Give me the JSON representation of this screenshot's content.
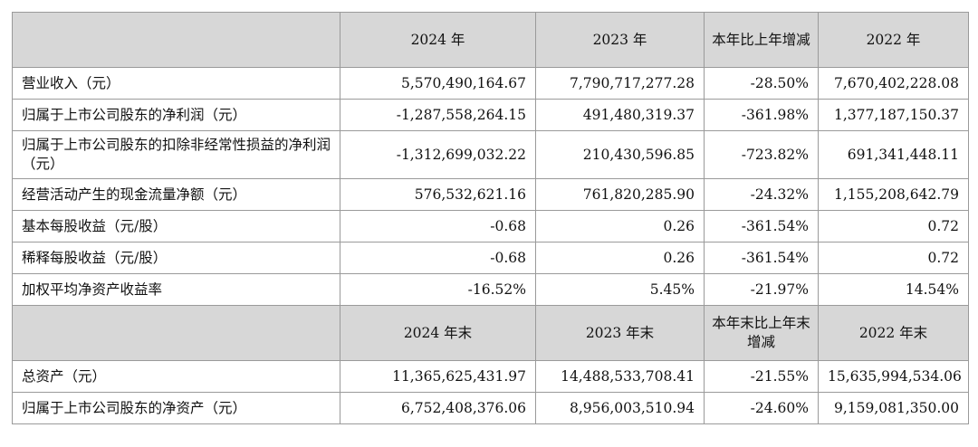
{
  "section1": {
    "headers": [
      "2024 年",
      "2023 年",
      "本年比上年增减",
      "2022 年"
    ],
    "rows": [
      {
        "label": "营业收入（元）",
        "values": [
          "5,570,490,164.67",
          "7,790,717,277.28",
          "-28.50%",
          "7,670,402,228.08"
        ]
      },
      {
        "label": "归属于上市公司股东的净利润（元）",
        "values": [
          "-1,287,558,264.15",
          "491,480,319.37",
          "-361.98%",
          "1,377,187,150.37"
        ]
      },
      {
        "label": "归属于上市公司股东的扣除非经常性损益的净利润（元）",
        "values": [
          "-1,312,699,032.22",
          "210,430,596.85",
          "-723.82%",
          "691,341,448.11"
        ]
      },
      {
        "label": "经营活动产生的现金流量净额（元）",
        "values": [
          "576,532,621.16",
          "761,820,285.90",
          "-24.32%",
          "1,155,208,642.79"
        ]
      },
      {
        "label": "基本每股收益（元/股）",
        "values": [
          "-0.68",
          "0.26",
          "-361.54%",
          "0.72"
        ]
      },
      {
        "label": "稀释每股收益（元/股）",
        "values": [
          "-0.68",
          "0.26",
          "-361.54%",
          "0.72"
        ]
      },
      {
        "label": "加权平均净资产收益率",
        "values": [
          "-16.52%",
          "5.45%",
          "-21.97%",
          "14.54%"
        ]
      }
    ]
  },
  "section2": {
    "headers": [
      "2024 年末",
      "2023 年末",
      "本年末比上年末增减",
      "2022 年末"
    ],
    "rows": [
      {
        "label": "总资产（元）",
        "values": [
          "11,365,625,431.97",
          "14,488,533,708.41",
          "-21.55%",
          "15,635,994,534.06"
        ]
      },
      {
        "label": "归属于上市公司股东的净资产（元）",
        "values": [
          "6,752,408,376.06",
          "8,956,003,510.94",
          "-24.60%",
          "9,159,081,350.00"
        ]
      }
    ]
  }
}
